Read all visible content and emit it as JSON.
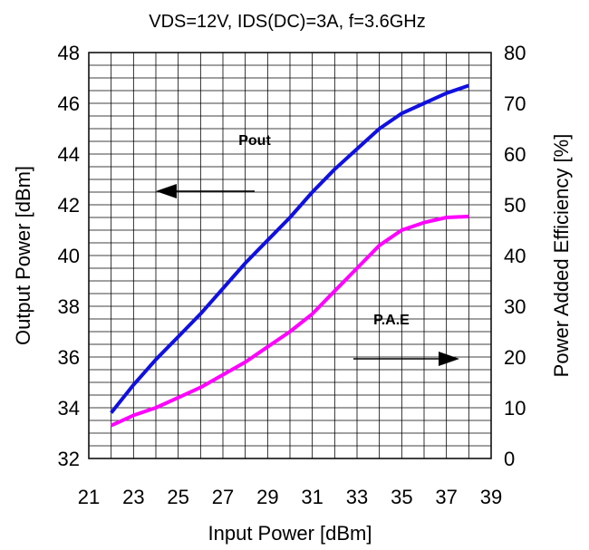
{
  "chart_data": {
    "type": "line",
    "title": "VDS=12V, IDS(DC)=3A, f=3.6GHz",
    "xlabel": "Input Power [dBm]",
    "ylabel_left": "Output Power [dBm]",
    "ylabel_right": "Power Added Efficiency [%]",
    "xlim": [
      21,
      39
    ],
    "ylim_left": [
      32,
      48
    ],
    "ylim_right": [
      0,
      80
    ],
    "x_ticks": [
      21,
      23,
      25,
      27,
      29,
      31,
      33,
      35,
      37,
      39
    ],
    "y_left_ticks": [
      32,
      34,
      36,
      38,
      40,
      42,
      44,
      46,
      48
    ],
    "y_right_ticks": [
      0,
      10,
      20,
      30,
      40,
      50,
      60,
      70,
      80
    ],
    "grid": true,
    "series": [
      {
        "name": "Pout",
        "axis": "left",
        "color": "#1010e0",
        "x": [
          22,
          23,
          24,
          25,
          26,
          27,
          28,
          29,
          30,
          31,
          32,
          33,
          34,
          35,
          36,
          37,
          38
        ],
        "y": [
          33.8,
          34.9,
          35.9,
          36.8,
          37.7,
          38.7,
          39.7,
          40.6,
          41.5,
          42.5,
          43.4,
          44.2,
          45.0,
          45.6,
          46.0,
          46.4,
          46.7
        ]
      },
      {
        "name": "P.A.E",
        "axis": "right",
        "color": "#ff00ff",
        "x": [
          22,
          23,
          24,
          25,
          26,
          27,
          28,
          29,
          30,
          31,
          32,
          33,
          34,
          35,
          36,
          37,
          38
        ],
        "y": [
          6.5,
          8.5,
          10.0,
          12.0,
          14.0,
          16.5,
          19.0,
          22.0,
          25.0,
          28.5,
          33.0,
          37.5,
          42.0,
          45.0,
          46.5,
          47.5,
          47.7
        ]
      }
    ],
    "annotations": [
      {
        "text": "Pout",
        "points_to": "left axis"
      },
      {
        "text": "P.A.E",
        "points_to": "right axis"
      }
    ]
  }
}
